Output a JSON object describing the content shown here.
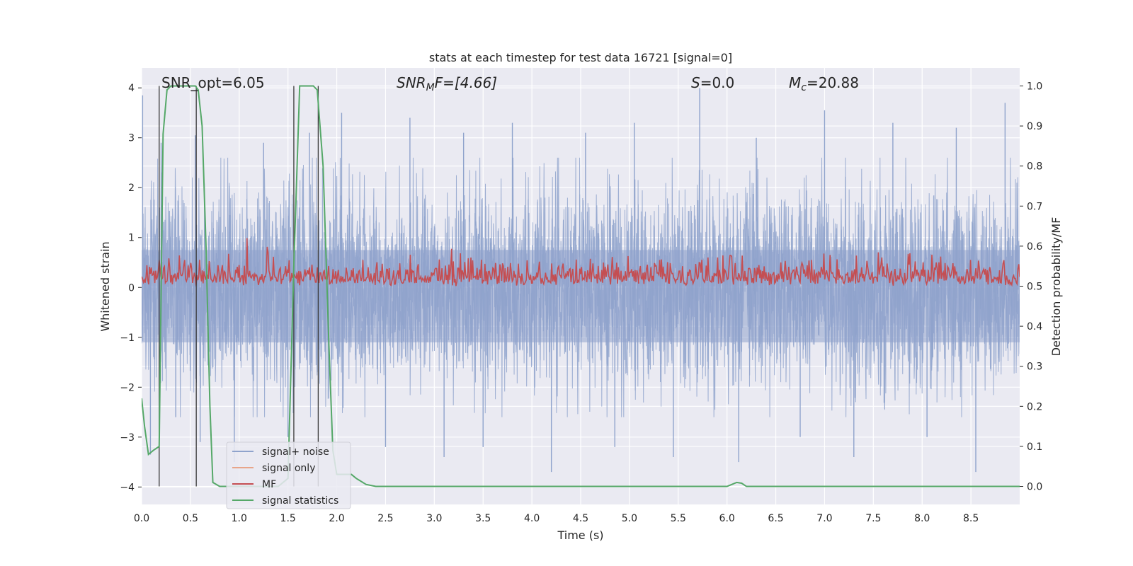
{
  "chart_data": {
    "type": "line",
    "title": "stats at each timestep for test data 16721 [signal=0]",
    "xlabel": "Time (s)",
    "ylabel": "Whitened strain",
    "y2label": "Detection probability/MF",
    "xlim": [
      0.0,
      9.0
    ],
    "ylim": [
      -4.35,
      4.4
    ],
    "y2lim": [
      -0.045,
      1.045
    ],
    "xticks": [
      "0.0",
      "0.5",
      "1.0",
      "1.5",
      "2.0",
      "2.5",
      "3.0",
      "3.5",
      "4.0",
      "4.5",
      "5.0",
      "5.5",
      "6.0",
      "6.5",
      "7.0",
      "7.5",
      "8.0",
      "8.5"
    ],
    "yticks": [
      "4",
      "3",
      "2",
      "1",
      "0",
      "−1",
      "−2",
      "−3",
      "−4"
    ],
    "y2ticks": [
      "1.0",
      "0.9",
      "0.8",
      "0.7",
      "0.6",
      "0.5",
      "0.4",
      "0.3",
      "0.2",
      "0.1",
      "0.0"
    ],
    "grid": true,
    "legend_position": "lower-left",
    "annotations": {
      "snr_opt": "SNR_opt=6.05",
      "snr_mf_main": "SNR",
      "snr_mf_sub": "M",
      "snr_mf_tail": "F=[4.66]",
      "s_main": "S",
      "s_tail": "=0.0",
      "mc_main": "M",
      "mc_sub": "c",
      "mc_tail": "=20.88"
    },
    "series": [
      {
        "name": "signal+ noise",
        "color": "#8fa3cc",
        "axis": "left",
        "description": "whitened noise band",
        "spikes": [
          [
            0.01,
            3.85
          ],
          [
            0.09,
            -3.35
          ],
          [
            0.2,
            2.9
          ],
          [
            0.35,
            -2.6
          ],
          [
            0.55,
            3.05
          ],
          [
            0.6,
            -3.1
          ],
          [
            0.95,
            -3.5
          ],
          [
            1.25,
            2.9
          ],
          [
            1.5,
            -3.0
          ],
          [
            1.72,
            3.1
          ],
          [
            2.05,
            3.5
          ],
          [
            2.5,
            -3.2
          ],
          [
            2.75,
            3.4
          ],
          [
            3.1,
            -3.4
          ],
          [
            3.3,
            3.1
          ],
          [
            3.5,
            -3.2
          ],
          [
            3.8,
            3.3
          ],
          [
            4.2,
            -3.7
          ],
          [
            4.55,
            3.1
          ],
          [
            4.85,
            -3.2
          ],
          [
            5.05,
            3.3
          ],
          [
            5.45,
            -3.4
          ],
          [
            5.72,
            4.0
          ],
          [
            6.12,
            -3.5
          ],
          [
            6.3,
            3.0
          ],
          [
            6.75,
            -3.0
          ],
          [
            7.0,
            3.55
          ],
          [
            7.3,
            -3.4
          ],
          [
            7.7,
            3.3
          ],
          [
            8.05,
            -3.0
          ],
          [
            8.35,
            3.2
          ],
          [
            8.55,
            -3.7
          ],
          [
            8.85,
            3.7
          ]
        ]
      },
      {
        "name": "signal only",
        "color": "#e8a58a",
        "axis": "left",
        "values": []
      },
      {
        "name": "MF",
        "color": "#c44e52",
        "axis": "right",
        "description": "matched-filter output fluctuating between ~0.5 and ~0.6",
        "range": [
          0.5,
          0.62
        ],
        "peak": [
          1.08,
          0.62
        ]
      },
      {
        "name": "signal statistics",
        "color": "#55a868",
        "axis": "right",
        "x": [
          0.0,
          0.03,
          0.07,
          0.12,
          0.18,
          0.22,
          0.26,
          0.3,
          0.45,
          0.55,
          0.58,
          0.62,
          0.66,
          0.7,
          0.73,
          0.8,
          1.0,
          1.4,
          1.5,
          1.56,
          1.62,
          1.7,
          1.76,
          1.8,
          1.86,
          1.92,
          1.96,
          2.0,
          2.05,
          2.15,
          2.2,
          2.3,
          2.4,
          2.6,
          3.0,
          4.0,
          5.0,
          5.8,
          6.0,
          6.05,
          6.1,
          6.15,
          6.2,
          6.3,
          7.0,
          8.0,
          9.0
        ],
        "values": [
          0.22,
          0.15,
          0.08,
          0.09,
          0.1,
          0.88,
          0.99,
          1.0,
          1.0,
          1.0,
          0.99,
          0.9,
          0.6,
          0.2,
          0.01,
          0.0,
          0.0,
          0.0,
          0.02,
          0.55,
          1.0,
          1.0,
          1.0,
          0.99,
          0.8,
          0.35,
          0.09,
          0.03,
          0.03,
          0.03,
          0.02,
          0.005,
          0.0,
          0.0,
          0.0,
          0.0,
          0.0,
          0.0,
          0.0,
          0.005,
          0.01,
          0.008,
          0.0,
          0.0,
          0.0,
          0.0,
          0.0
        ]
      }
    ],
    "vlines": [
      0.18,
      0.56,
      1.56,
      1.81
    ]
  }
}
